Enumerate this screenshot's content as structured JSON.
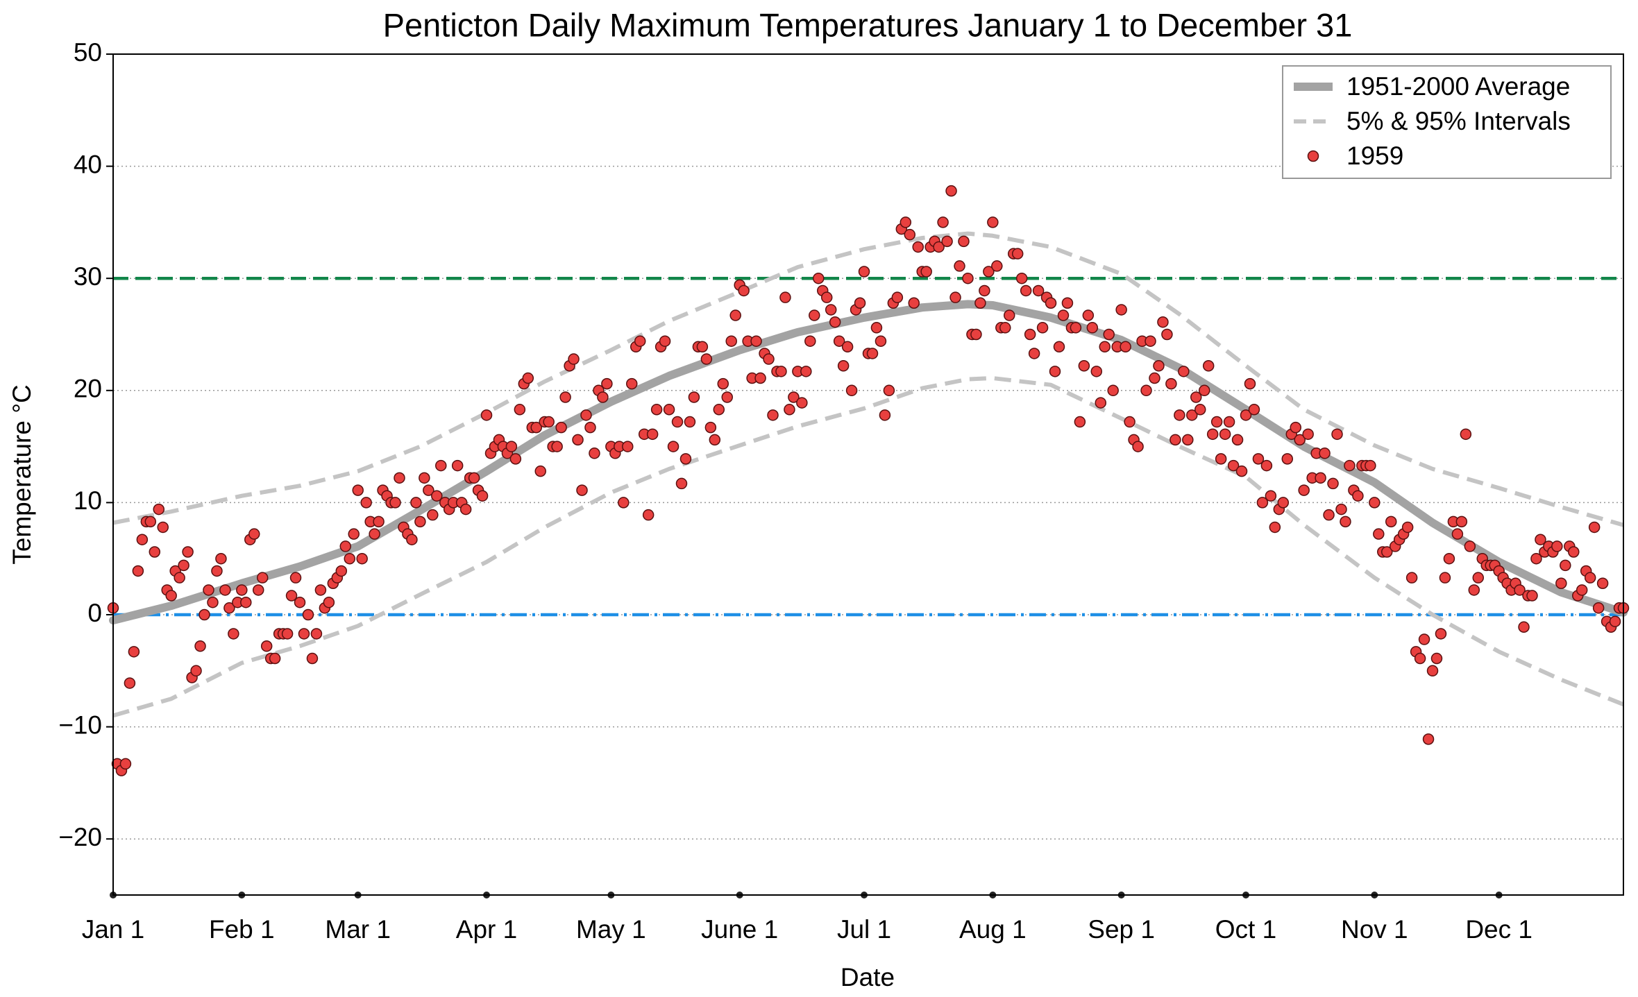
{
  "chart_data": {
    "type": "scatter",
    "title": "Penticton Daily Maximum Temperatures January 1 to December 31",
    "xlabel": "Date",
    "ylabel": "Temperature °C",
    "xlim": [
      1,
      365
    ],
    "ylim": [
      -25,
      50
    ],
    "xticks": [
      {
        "value": 1,
        "label": "Jan 1"
      },
      {
        "value": 32,
        "label": "Feb 1"
      },
      {
        "value": 60,
        "label": "Mar 1"
      },
      {
        "value": 91,
        "label": "Apr 1"
      },
      {
        "value": 121,
        "label": "May 1"
      },
      {
        "value": 152,
        "label": "June 1"
      },
      {
        "value": 182,
        "label": "Jul 1"
      },
      {
        "value": 213,
        "label": "Aug 1"
      },
      {
        "value": 244,
        "label": "Sep 1"
      },
      {
        "value": 274,
        "label": "Oct 1"
      },
      {
        "value": 305,
        "label": "Nov 1"
      },
      {
        "value": 335,
        "label": "Dec 1"
      }
    ],
    "yticks": [
      {
        "value": -20,
        "label": "−20"
      },
      {
        "value": -10,
        "label": "−10"
      },
      0,
      10,
      20,
      30,
      40,
      50
    ],
    "grid": true,
    "legend": "upper right",
    "hlines": [
      {
        "value": 30,
        "color": "#12864a",
        "style": "dashed"
      },
      {
        "value": 0,
        "color": "#1e8fe6",
        "style": "dashdot"
      }
    ],
    "series": [
      {
        "name": "1951-2000 Average",
        "type": "line",
        "color": "#a3a3a3",
        "x": [
          1,
          15,
          32,
          46,
          60,
          75,
          91,
          105,
          121,
          135,
          152,
          166,
          182,
          196,
          207,
          213,
          227,
          244,
          258,
          274,
          288,
          305,
          319,
          335,
          350,
          365
        ],
        "values": [
          -0.5,
          0.8,
          2.8,
          4.3,
          6.1,
          9.3,
          12.8,
          16,
          19,
          21.3,
          23.6,
          25.2,
          26.5,
          27.4,
          27.7,
          27.6,
          26.5,
          24.5,
          22,
          18.3,
          15,
          11.8,
          8.2,
          4.7,
          2,
          0.2
        ]
      },
      {
        "name": "5% & 95% Intervals",
        "type": "band",
        "color": "#c4c4c4",
        "x": [
          1,
          15,
          32,
          46,
          60,
          75,
          91,
          105,
          121,
          135,
          152,
          166,
          182,
          196,
          207,
          213,
          227,
          244,
          258,
          274,
          288,
          305,
          319,
          335,
          350,
          365
        ],
        "lower": [
          -9,
          -7.5,
          -4.3,
          -2.8,
          -1,
          1.8,
          4.7,
          7.8,
          10.9,
          13,
          15.1,
          16.8,
          18.4,
          20.2,
          21,
          21.1,
          20.5,
          17.5,
          15,
          12.3,
          8,
          3.3,
          0,
          -3.3,
          -5.8,
          -8
        ],
        "upper": [
          8.2,
          9.2,
          10.6,
          11.5,
          12.8,
          15,
          18,
          20.8,
          23.6,
          26.2,
          28.8,
          31,
          32.6,
          33.6,
          34,
          33.8,
          32.8,
          30.4,
          26.8,
          22.2,
          18.3,
          15.1,
          13,
          11.3,
          9.6,
          8
        ]
      },
      {
        "name": "1959",
        "type": "scatter",
        "color": "#e8403f",
        "x": [
          1,
          2,
          3,
          4,
          5,
          6,
          7,
          8,
          9,
          10,
          11,
          12,
          13,
          14,
          15,
          16,
          17,
          18,
          19,
          20,
          21,
          22,
          23,
          24,
          25,
          26,
          27,
          28,
          29,
          30,
          31,
          32,
          33,
          34,
          35,
          36,
          37,
          38,
          39,
          40,
          41,
          42,
          43,
          44,
          45,
          46,
          47,
          48,
          49,
          50,
          51,
          52,
          53,
          54,
          55,
          56,
          57,
          58,
          59,
          60,
          61,
          62,
          63,
          64,
          65,
          66,
          67,
          68,
          69,
          70,
          71,
          72,
          73,
          74,
          75,
          76,
          77,
          78,
          79,
          80,
          81,
          82,
          83,
          84,
          85,
          86,
          87,
          88,
          89,
          90,
          91,
          92,
          93,
          94,
          95,
          96,
          97,
          98,
          99,
          100,
          101,
          102,
          103,
          104,
          105,
          106,
          107,
          108,
          109,
          110,
          111,
          112,
          113,
          114,
          115,
          116,
          117,
          118,
          119,
          120,
          121,
          122,
          123,
          124,
          125,
          126,
          127,
          128,
          129,
          130,
          131,
          132,
          133,
          134,
          135,
          136,
          137,
          138,
          139,
          140,
          141,
          142,
          143,
          144,
          145,
          146,
          147,
          148,
          149,
          150,
          151,
          152,
          153,
          154,
          155,
          156,
          157,
          158,
          159,
          160,
          161,
          162,
          163,
          164,
          165,
          166,
          167,
          168,
          169,
          170,
          171,
          172,
          173,
          174,
          175,
          176,
          177,
          178,
          179,
          180,
          181,
          182,
          183,
          184,
          185,
          186,
          187,
          188,
          189,
          190,
          191,
          192,
          193,
          194,
          195,
          196,
          197,
          198,
          199,
          200,
          201,
          202,
          203,
          204,
          205,
          206,
          207,
          208,
          209,
          210,
          211,
          212,
          213,
          214,
          215,
          216,
          217,
          218,
          219,
          220,
          221,
          222,
          223,
          224,
          225,
          226,
          227,
          228,
          229,
          230,
          231,
          232,
          233,
          234,
          235,
          236,
          237,
          238,
          239,
          240,
          241,
          242,
          243,
          244,
          245,
          246,
          247,
          248,
          249,
          250,
          251,
          252,
          253,
          254,
          255,
          256,
          257,
          258,
          259,
          260,
          261,
          262,
          263,
          264,
          265,
          266,
          267,
          268,
          269,
          270,
          271,
          272,
          273,
          274,
          275,
          276,
          277,
          278,
          279,
          280,
          281,
          282,
          283,
          284,
          285,
          286,
          287,
          288,
          289,
          290,
          291,
          292,
          293,
          294,
          295,
          296,
          297,
          298,
          299,
          300,
          301,
          302,
          303,
          304,
          305,
          306,
          307,
          308,
          309,
          310,
          311,
          312,
          313,
          314,
          315,
          316,
          317,
          318,
          319,
          320,
          321,
          322,
          323,
          324,
          325,
          326,
          327,
          328,
          329,
          330,
          331,
          332,
          333,
          334,
          335,
          336,
          337,
          338,
          339,
          340,
          341,
          342,
          343,
          344,
          345,
          346,
          347,
          348,
          349,
          350,
          351,
          352,
          353,
          354,
          355,
          356,
          357,
          358,
          359,
          360,
          361,
          362,
          363,
          364,
          365
        ],
        "values": [
          0.6,
          -13.3,
          -13.9,
          -13.3,
          -6.1,
          -3.3,
          3.9,
          6.7,
          8.3,
          8.3,
          5.6,
          9.4,
          7.8,
          2.2,
          1.7,
          3.9,
          3.3,
          4.4,
          5.6,
          -5.6,
          -5.0,
          -2.8,
          0,
          2.2,
          1.1,
          3.9,
          5.0,
          2.2,
          0.6,
          -1.7,
          1.1,
          2.2,
          1.1,
          6.7,
          7.2,
          2.2,
          3.3,
          -2.8,
          -3.9,
          -3.9,
          -1.7,
          -1.7,
          -1.7,
          1.7,
          3.3,
          1.1,
          -1.7,
          0,
          -3.9,
          -1.7,
          2.2,
          0.6,
          1.1,
          2.8,
          3.3,
          3.9,
          6.1,
          5.0,
          7.2,
          11.1,
          5.0,
          10.0,
          8.3,
          7.2,
          8.3,
          11.1,
          10.6,
          10.0,
          10.0,
          12.2,
          7.8,
          7.2,
          6.7,
          10.0,
          8.3,
          12.2,
          11.1,
          8.9,
          10.6,
          13.3,
          10.0,
          9.4,
          10.0,
          13.3,
          10.0,
          9.4,
          12.2,
          12.2,
          11.1,
          10.6,
          17.8,
          14.4,
          15.0,
          15.6,
          15.0,
          14.4,
          15.0,
          13.9,
          18.3,
          20.6,
          21.1,
          16.7,
          16.7,
          12.8,
          17.2,
          17.2,
          15.0,
          15.0,
          16.7,
          19.4,
          22.2,
          22.8,
          15.6,
          11.1,
          17.8,
          16.7,
          14.4,
          20.0,
          19.4,
          20.6,
          15.0,
          14.4,
          15.0,
          10.0,
          15.0,
          20.6,
          23.9,
          24.4,
          16.1,
          8.9,
          16.1,
          18.3,
          23.9,
          24.4,
          18.3,
          15.0,
          17.2,
          11.7,
          13.9,
          17.2,
          19.4,
          23.9,
          23.9,
          22.8,
          16.7,
          15.6,
          18.3,
          20.6,
          19.4,
          24.4,
          26.7,
          29.4,
          28.9,
          24.4,
          21.1,
          24.4,
          21.1,
          23.3,
          22.8,
          17.8,
          21.7,
          21.7,
          28.3,
          18.3,
          19.4,
          21.7,
          18.9,
          21.7,
          24.4,
          26.7,
          30.0,
          28.9,
          28.3,
          27.2,
          26.1,
          24.4,
          22.2,
          23.9,
          20.0,
          27.2,
          27.8,
          30.6,
          23.3,
          23.3,
          25.6,
          24.4,
          17.8,
          20.0,
          27.8,
          28.3,
          34.4,
          35.0,
          33.9,
          27.8,
          32.8,
          30.6,
          30.6,
          32.8,
          33.3,
          32.8,
          35.0,
          33.3,
          37.8,
          28.3,
          31.1,
          33.3,
          30.0,
          25.0,
          25.0,
          27.8,
          28.9,
          30.6,
          35.0,
          31.1,
          25.6,
          25.6,
          26.7,
          32.2,
          32.2,
          30.0,
          28.9,
          25.0,
          23.3,
          28.9,
          25.6,
          28.3,
          27.8,
          21.7,
          23.9,
          26.7,
          27.8,
          25.6,
          25.6,
          17.2,
          22.2,
          26.7,
          25.6,
          21.7,
          18.9,
          23.9,
          25.0,
          20.0,
          23.9,
          27.2,
          23.9,
          17.2,
          15.6,
          15.0,
          24.4,
          20.0,
          24.4,
          21.1,
          22.2,
          26.1,
          25.0,
          20.6,
          15.6,
          17.8,
          21.7,
          15.6,
          17.8,
          19.4,
          18.3,
          20.0,
          22.2,
          16.1,
          17.2,
          13.9,
          16.1,
          17.2,
          13.3,
          15.6,
          12.8,
          17.8,
          20.6,
          18.3,
          13.9,
          10.0,
          13.3,
          10.6,
          7.8,
          9.4,
          10.0,
          13.9,
          16.1,
          16.7,
          15.6,
          11.1,
          16.1,
          12.2,
          14.4,
          12.2,
          14.4,
          8.9,
          11.7,
          16.1,
          9.4,
          8.3,
          13.3,
          11.1,
          10.6,
          13.3,
          13.3,
          13.3,
          10.0,
          7.2,
          5.6,
          5.6,
          8.3,
          6.1,
          6.7,
          7.2,
          7.8,
          3.3,
          -3.3,
          -3.9,
          -2.2,
          -11.1,
          -5.0,
          -3.9,
          -1.7,
          3.3,
          5.0,
          8.3,
          7.2,
          8.3,
          16.1,
          6.1,
          2.2,
          3.3,
          5.0,
          4.4,
          4.4,
          4.4,
          3.9,
          3.3,
          2.8,
          2.2,
          2.8,
          2.2,
          -1.1,
          1.7,
          1.7,
          5.0,
          6.7,
          5.6,
          6.1,
          5.6,
          6.1,
          2.8,
          4.4,
          6.1,
          5.6,
          1.7,
          2.2,
          3.9,
          3.3,
          7.8,
          0.6,
          2.8,
          -0.6,
          -1.1,
          -0.6,
          0.6,
          0.6
        ]
      }
    ]
  }
}
